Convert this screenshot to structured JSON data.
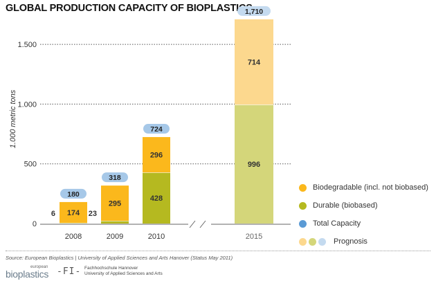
{
  "title": "GLOBAL PRODUCTION CAPACITY OF BIOPLASTICS",
  "colors": {
    "biodegradable": "#fbb81c",
    "durable": "#b5b920",
    "total": "#5b9bd5",
    "total_pill": "#a6c8e8",
    "prog_bio": "#fcd88e",
    "prog_durable": "#d4d67a",
    "prog_total": "#c4daef"
  },
  "chart_data": {
    "type": "bar",
    "stacked": true,
    "categories": [
      "2008",
      "2009",
      "2010",
      "2015"
    ],
    "series": [
      {
        "name": "Durable (biobased)",
        "values": [
          6,
          23,
          428,
          996
        ]
      },
      {
        "name": "Biodegradable (incl. not biobased)",
        "values": [
          174,
          295,
          296,
          714
        ]
      }
    ],
    "totals": [
      180,
      318,
      724,
      1710
    ],
    "total_labels": [
      "180",
      "318",
      "724",
      "1,710"
    ],
    "prognosis": [
      false,
      false,
      false,
      true
    ],
    "ylabel": "1.000 metric tons",
    "yticks": [
      0,
      500,
      1000,
      1500
    ],
    "ytick_labels": [
      "0",
      "500",
      "1.000",
      "1.500"
    ],
    "ylim": [
      0,
      1750
    ],
    "grid": true,
    "axis_break_after": "2010",
    "legend_position": "right",
    "legend": [
      {
        "label": "Biodegradable (incl. not biobased)",
        "color": "#fbb81c"
      },
      {
        "label": "Durable (biobased)",
        "color": "#b5b920"
      },
      {
        "label": "Total Capacity",
        "color": "#5b9bd5"
      },
      {
        "label": "Prognosis",
        "colors": [
          "#fcd88e",
          "#d4d67a",
          "#c4daef"
        ]
      }
    ]
  },
  "source": "Source: European Bioplastics | University of Applied Sciences and Arts Hanover (Status May 2011)",
  "logos": {
    "eb_small": "european",
    "eb_big": "bioplastics",
    "fh_mark": "-FI-",
    "fh_line1": "Fachhochschule Hannover",
    "fh_line2": "University of Applied Sciences and Arts"
  }
}
